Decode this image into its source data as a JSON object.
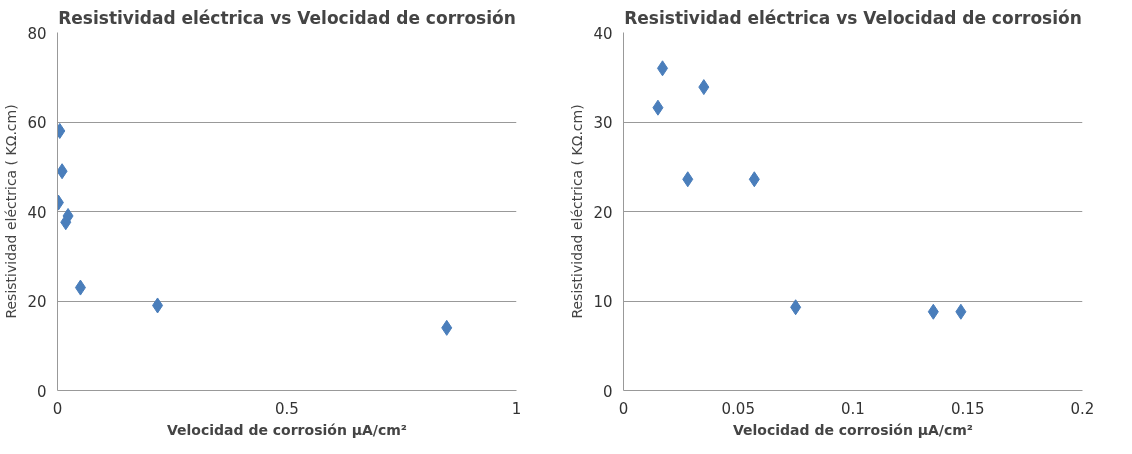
{
  "chart_data": [
    {
      "type": "scatter",
      "title": "Resistividad eléctrica vs Velocidad de corrosión",
      "xlabel": "Velocidad de corrosión µA/cm²",
      "ylabel": "Resistividad eléctrica ( KΩ.cm)",
      "x": [
        0.005,
        0.01,
        0.002,
        0.023,
        0.018,
        0.05,
        0.218,
        0.848
      ],
      "series": [
        {
          "color": "#4a7ebb",
          "values": [
            58,
            49,
            42,
            39,
            37.6,
            23,
            19,
            14
          ]
        }
      ],
      "xlim": [
        0,
        1
      ],
      "xticks": [
        0,
        0.5,
        1
      ],
      "ylim": [
        0,
        80
      ],
      "yticks": [
        0,
        20,
        40,
        60,
        80
      ],
      "grid": "y",
      "marker": "diamond"
    },
    {
      "type": "scatter",
      "title": "Resistividad eléctrica vs Velocidad de corrosión",
      "xlabel": "Velocidad de corrosión µA/cm²",
      "ylabel": "Resistividad eléctrica ( KΩ.cm)",
      "x": [
        0.017,
        0.015,
        0.035,
        0.028,
        0.057,
        0.075,
        0.135,
        0.147
      ],
      "series": [
        {
          "color": "#4a7ebb",
          "values": [
            36,
            31.6,
            33.9,
            23.6,
            23.6,
            9.3,
            8.8,
            8.8
          ]
        }
      ],
      "xlim": [
        0,
        0.2
      ],
      "xticks": [
        0,
        0.05,
        0.1,
        0.15,
        0.2
      ],
      "ylim": [
        0,
        40
      ],
      "yticks": [
        0,
        10,
        20,
        30,
        40
      ],
      "grid": "y",
      "marker": "diamond"
    }
  ]
}
